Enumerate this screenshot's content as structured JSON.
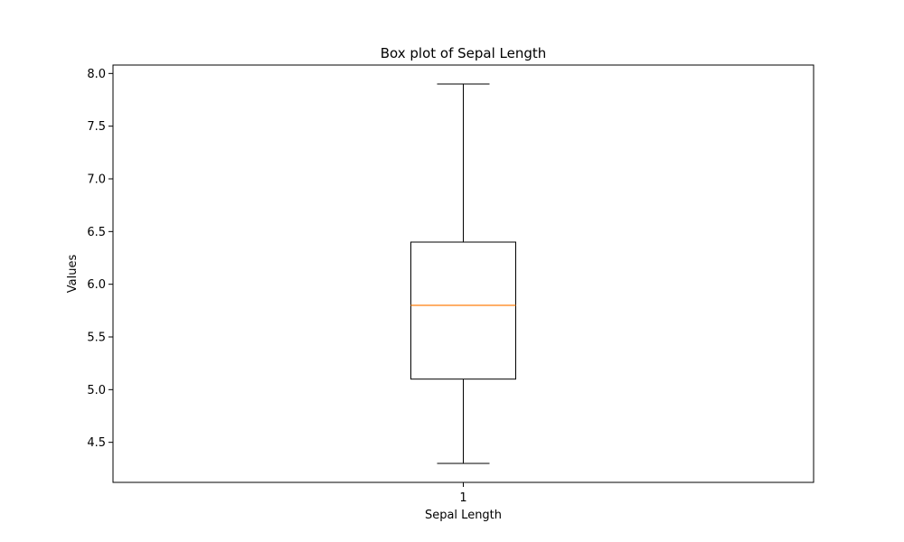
{
  "chart_data": {
    "type": "boxplot",
    "title": "Box plot of Sepal Length",
    "xlabel": "Sepal Length",
    "ylabel": "Values",
    "categories": [
      "1"
    ],
    "ylim": [
      4.12,
      8.08
    ],
    "yticks": [
      4.5,
      5.0,
      5.5,
      6.0,
      6.5,
      7.0,
      7.5,
      8.0
    ],
    "ytick_labels": [
      "4.5",
      "5.0",
      "5.5",
      "6.0",
      "6.5",
      "7.0",
      "7.5",
      "8.0"
    ],
    "boxes": [
      {
        "category": "1",
        "min": 4.3,
        "q1": 5.1,
        "median": 5.8,
        "q3": 6.4,
        "max": 7.9
      }
    ],
    "grid": false,
    "colors": {
      "box": "#000000",
      "median": "#ff7f0e",
      "axes": "#000000",
      "background": "#ffffff"
    }
  }
}
